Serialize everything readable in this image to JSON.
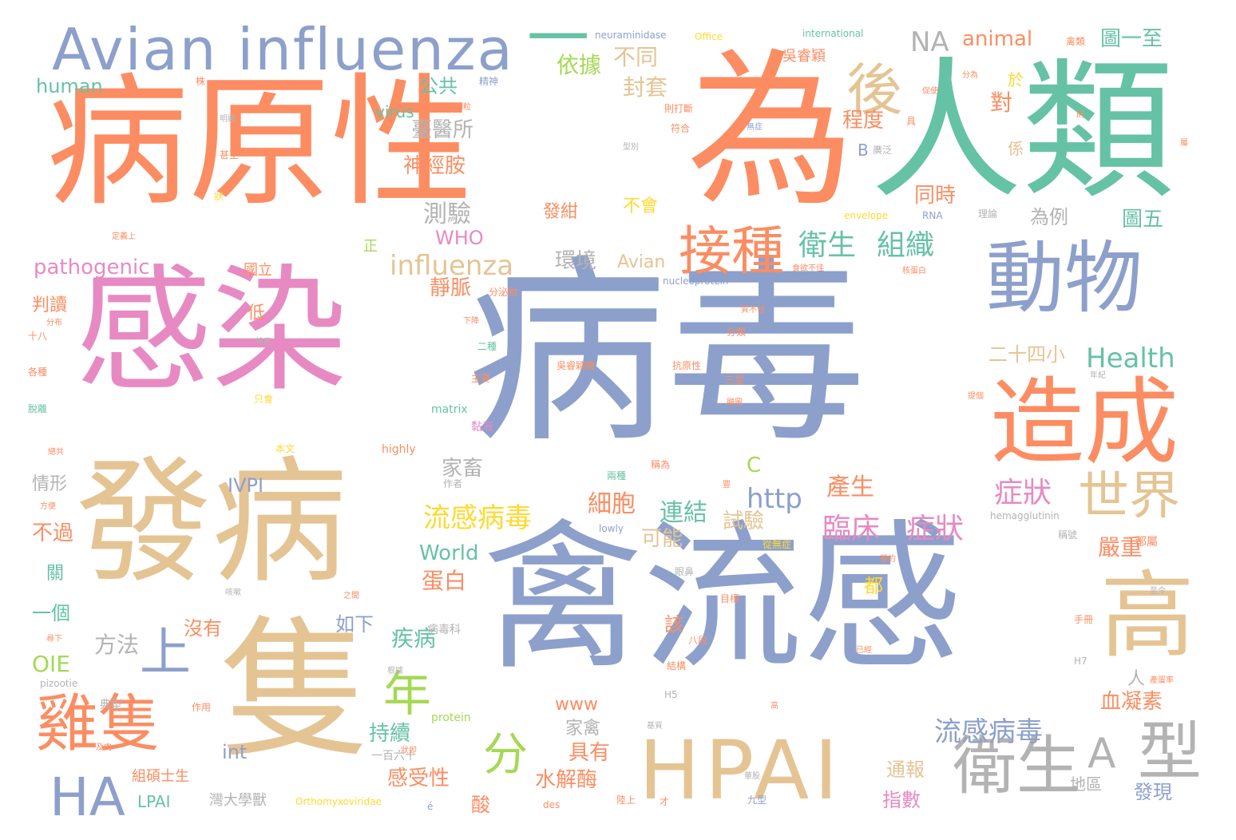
{
  "palette": {
    "blue": "#8da0cb",
    "orange": "#fc8d62",
    "green": "#66c2a5",
    "pink": "#e78ac3",
    "tan": "#e5c494",
    "gray": "#b3b3b3",
    "lime": "#a6d854",
    "yellow": "#ffd92f"
  },
  "words": [
    {
      "text": "病毒"
    },
    {
      "text": "病原性"
    },
    {
      "text": "為"
    },
    {
      "text": "人類"
    },
    {
      "text": "感染"
    },
    {
      "text": "發病"
    },
    {
      "text": "隻"
    },
    {
      "text": "禽流感"
    },
    {
      "text": "HPAI"
    },
    {
      "text": "Avian influenza"
    },
    {
      "text": "動物"
    },
    {
      "text": "造成"
    },
    {
      "text": "高"
    },
    {
      "text": "衛生"
    },
    {
      "text": "型"
    },
    {
      "text": "A"
    },
    {
      "text": "接種"
    },
    {
      "text": "後"
    },
    {
      "text": "世界"
    },
    {
      "text": "雞隻"
    },
    {
      "text": "HA"
    },
    {
      "text": "上"
    },
    {
      "text": "年"
    },
    {
      "text": "分"
    },
    {
      "text": "一"
    },
    {
      "text": "NA"
    },
    {
      "text": "衛生"
    },
    {
      "text": "組織"
    },
    {
      "text": "Health"
    },
    {
      "text": "流感病毒"
    },
    {
      "text": "流感病毒"
    },
    {
      "text": "臨床"
    },
    {
      "text": "症狀"
    },
    {
      "text": "症狀"
    },
    {
      "text": "influenza"
    },
    {
      "text": "http"
    },
    {
      "text": "嚴重"
    },
    {
      "text": "對"
    },
    {
      "text": "不同"
    },
    {
      "text": "依據"
    },
    {
      "text": "公共"
    },
    {
      "text": "封套"
    },
    {
      "text": "臺醫所"
    },
    {
      "text": "神經胺"
    },
    {
      "text": "程度"
    },
    {
      "text": "測驗"
    },
    {
      "text": "同時"
    },
    {
      "text": "為例"
    },
    {
      "text": "圖五"
    },
    {
      "text": "圖一至"
    },
    {
      "text": "animal"
    },
    {
      "text": "吳睿穎"
    },
    {
      "text": "human"
    },
    {
      "text": "virus"
    },
    {
      "text": "pathogenic"
    },
    {
      "text": "WHO"
    },
    {
      "text": "環境"
    },
    {
      "text": "Avian"
    },
    {
      "text": "靜脈"
    },
    {
      "text": "細胞"
    },
    {
      "text": "連結"
    },
    {
      "text": "試驗"
    },
    {
      "text": "產生"
    },
    {
      "text": "可能"
    },
    {
      "text": "World"
    },
    {
      "text": "蛋白"
    },
    {
      "text": "疾病"
    },
    {
      "text": "方法"
    },
    {
      "text": "如下"
    },
    {
      "text": "沒有"
    },
    {
      "text": "一個"
    },
    {
      "text": "OIE"
    },
    {
      "text": "IVPI"
    },
    {
      "text": "家畜"
    },
    {
      "text": "情形"
    },
    {
      "text": "不過"
    },
    {
      "text": "C"
    },
    {
      "text": "具有"
    },
    {
      "text": "持續"
    },
    {
      "text": "家禽"
    },
    {
      "text": "水解酶"
    },
    {
      "text": "感受性"
    },
    {
      "text": "酸"
    },
    {
      "text": "int"
    },
    {
      "text": "LPAI"
    },
    {
      "text": "血凝素"
    },
    {
      "text": "通報"
    },
    {
      "text": "指數"
    },
    {
      "text": "發現"
    },
    {
      "text": "地區"
    },
    {
      "text": "二十四小"
    },
    {
      "text": "不會"
    },
    {
      "text": "發紺"
    },
    {
      "text": "www"
    },
    {
      "text": "B"
    },
    {
      "text": "廣泛"
    },
    {
      "text": "該"
    },
    {
      "text": "都"
    },
    {
      "text": "人"
    },
    {
      "text": "判讀"
    },
    {
      "text": "低"
    },
    {
      "text": "國立"
    },
    {
      "text": "正"
    },
    {
      "text": "係"
    },
    {
      "text": "於"
    },
    {
      "text": "關"
    },
    {
      "text": "典型"
    },
    {
      "text": "作用"
    },
    {
      "text": "組碩士生"
    },
    {
      "text": "灣大學獸"
    },
    {
      "text": "一百六十"
    },
    {
      "text": "Orthomyxoviridae"
    },
    {
      "text": "des"
    },
    {
      "text": "protein"
    },
    {
      "text": "matrix"
    },
    {
      "text": "highly"
    },
    {
      "text": "hemagglutinin"
    },
    {
      "text": "lowly"
    },
    {
      "text": "nucleoprotein"
    },
    {
      "text": "RNA"
    },
    {
      "text": "envelope"
    },
    {
      "text": "international"
    },
    {
      "text": "Office"
    },
    {
      "text": "neuraminidase"
    },
    {
      "text": "pizootie"
    },
    {
      "text": "H5"
    },
    {
      "text": "H7"
    },
    {
      "text": "é"
    },
    {
      "text": "分泌物"
    },
    {
      "text": "功能"
    },
    {
      "text": "黏液"
    },
    {
      "text": "二種"
    },
    {
      "text": "三型"
    },
    {
      "text": "分類"
    },
    {
      "text": "抗原性"
    },
    {
      "text": "吳睿穎繪"
    },
    {
      "text": "主要"
    },
    {
      "text": "下降"
    },
    {
      "text": "特定"
    },
    {
      "text": "本文"
    },
    {
      "text": "作者"
    },
    {
      "text": "兩種"
    },
    {
      "text": "稱為"
    },
    {
      "text": "從無症"
    },
    {
      "text": "眼鼻"
    },
    {
      "text": "目標"
    },
    {
      "text": "病毒科"
    },
    {
      "text": "之間"
    },
    {
      "text": "咳嗽"
    },
    {
      "text": "根據"
    },
    {
      "text": "結構"
    },
    {
      "text": "八段"
    },
    {
      "text": "已經"
    },
    {
      "text": "至今"
    },
    {
      "text": "手冊"
    },
    {
      "text": "都屬"
    },
    {
      "text": "稱號"
    },
    {
      "text": "禽類"
    },
    {
      "text": "促使"
    },
    {
      "text": "分為"
    },
    {
      "text": "具"
    },
    {
      "text": "理論"
    },
    {
      "text": "屬"
    },
    {
      "text": "明顯"
    },
    {
      "text": "精神"
    },
    {
      "text": "顆粒"
    },
    {
      "text": "則打斷"
    },
    {
      "text": "符合"
    },
    {
      "text": "無症"
    },
    {
      "text": "型別"
    },
    {
      "text": "甚至"
    },
    {
      "text": "狀"
    },
    {
      "text": "株"
    },
    {
      "text": "定義上"
    },
    {
      "text": "分布"
    },
    {
      "text": "十八"
    },
    {
      "text": "各種"
    },
    {
      "text": "脫離"
    },
    {
      "text": "只會"
    },
    {
      "text": "總共"
    },
    {
      "text": "方便"
    },
    {
      "text": "尋下"
    },
    {
      "text": "及肉"
    },
    {
      "text": "狀即"
    },
    {
      "text": "基質"
    },
    {
      "text": "陸上"
    },
    {
      "text": "九型"
    },
    {
      "text": "華股"
    },
    {
      "text": "才"
    },
    {
      "text": "高"
    },
    {
      "text": "質不佳"
    },
    {
      "text": "食欲不佳"
    },
    {
      "text": "核蛋白"
    },
    {
      "text": "提個"
    },
    {
      "text": "顯圖"
    },
    {
      "text": "年紀"
    },
    {
      "text": "種的"
    },
    {
      "text": "產蛋率"
    },
    {
      "text": "豐"
    },
    {
      "text": "則"
    }
  ]
}
